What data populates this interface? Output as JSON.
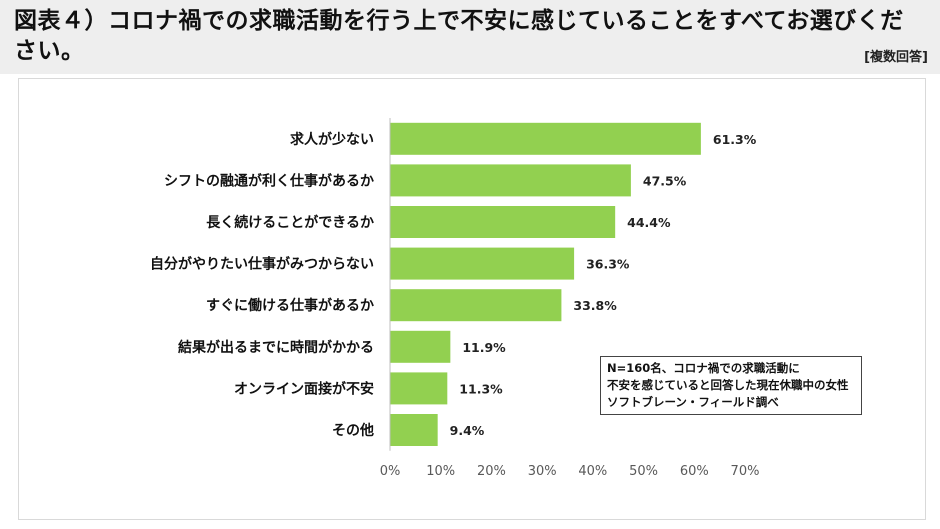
{
  "header": {
    "title": "図表４）コロナ禍での求職活動を行う上で不安に感じていることをすべてお選びください。",
    "note": "[複数回答]"
  },
  "annotation": {
    "lines": [
      "N=160名、コロナ禍での求職活動に",
      "不安を感じていると回答した現在休職中の女性",
      "ソフトブレーン・フィールド調べ"
    ]
  },
  "colors": {
    "bar": "#92d050",
    "axis": "#bfbfbf"
  },
  "chart_data": {
    "type": "bar",
    "orientation": "horizontal",
    "categories": [
      "求人が少ない",
      "シフトの融通が利く仕事があるか",
      "長く続けることができるか",
      "自分がやりたい仕事がみつからない",
      "すぐに働ける仕事があるか",
      "結果が出るまでに時間がかかる",
      "オンライン面接が不安",
      "その他"
    ],
    "values": [
      61.3,
      47.5,
      44.4,
      36.3,
      33.8,
      11.9,
      11.3,
      9.4
    ],
    "value_labels": [
      "61.3%",
      "47.5%",
      "44.4%",
      "36.3%",
      "33.8%",
      "11.9%",
      "11.3%",
      "9.4%"
    ],
    "xlim": [
      0,
      70
    ],
    "xticks": [
      "0%",
      "10%",
      "20%",
      "30%",
      "40%",
      "50%",
      "60%",
      "70%"
    ],
    "grid": false,
    "legend": "none"
  }
}
